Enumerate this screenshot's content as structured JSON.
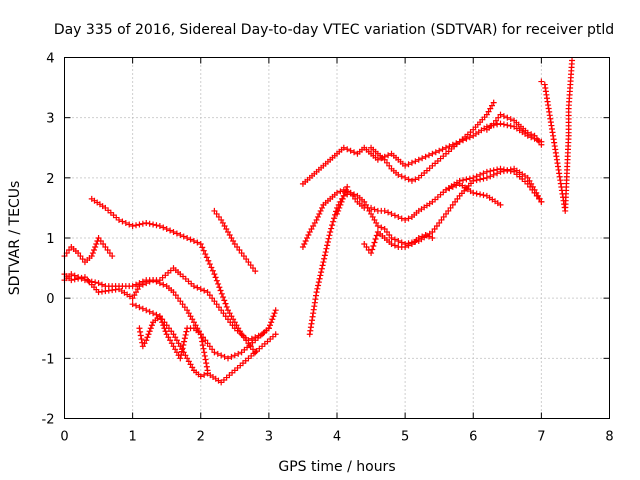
{
  "chart_data": {
    "type": "scatter",
    "title": "Day 335 of 2016, Sidereal Day-to-day VTEC variation (SDTVAR) for receiver ptld",
    "xlabel": "GPS time / hours",
    "ylabel": "SDTVAR / TECUs",
    "xlim": [
      0,
      8
    ],
    "ylim": [
      -2,
      4
    ],
    "xticks": [
      "0",
      "1",
      "2",
      "3",
      "4",
      "5",
      "6",
      "7",
      "8"
    ],
    "yticks": [
      "-2",
      "-1",
      "0",
      "1",
      "2",
      "3",
      "4"
    ],
    "grid": true,
    "marker": "plus",
    "color": "#ff0000",
    "series": [
      {
        "x": [
          0.0,
          0.1,
          0.2,
          0.3,
          0.4,
          0.5,
          0.6,
          0.7
        ],
        "y": [
          0.7,
          0.85,
          0.75,
          0.6,
          0.7,
          1.0,
          0.85,
          0.7
        ]
      },
      {
        "x": [
          0.0,
          0.1,
          0.3,
          0.5,
          0.8,
          1.0,
          1.1,
          1.3,
          1.5,
          1.6,
          1.8,
          2.0,
          2.2,
          2.4,
          2.6,
          2.8,
          3.0
        ],
        "y": [
          0.4,
          0.3,
          0.35,
          0.1,
          0.15,
          0.0,
          0.2,
          0.3,
          0.2,
          0.1,
          -0.2,
          -0.6,
          -0.9,
          -1.0,
          -0.9,
          -0.7,
          -0.5
        ]
      },
      {
        "x": [
          0.0,
          0.1,
          0.3,
          0.5,
          0.6,
          0.8,
          1.0,
          1.2,
          1.4,
          1.6,
          1.7,
          1.9,
          2.1,
          2.3,
          2.5,
          2.7,
          2.9,
          3.0,
          3.1
        ],
        "y": [
          0.3,
          0.4,
          0.3,
          0.25,
          0.2,
          0.2,
          0.2,
          0.3,
          0.3,
          0.5,
          0.4,
          0.2,
          0.1,
          -0.2,
          -0.5,
          -0.7,
          -0.6,
          -0.5,
          -0.2
        ]
      },
      {
        "x": [
          0.4,
          0.6,
          0.8,
          1.0,
          1.2,
          1.4,
          1.6,
          1.8,
          2.0,
          2.2,
          2.4,
          2.6,
          2.8
        ],
        "y": [
          1.65,
          1.5,
          1.3,
          1.2,
          1.25,
          1.2,
          1.1,
          1.0,
          0.9,
          0.4,
          -0.2,
          -0.6,
          -0.9
        ]
      },
      {
        "x": [
          1.0,
          1.2,
          1.4,
          1.6,
          1.8,
          1.9,
          2.0,
          2.1,
          2.3,
          2.5,
          2.7,
          2.9,
          3.1
        ],
        "y": [
          -0.1,
          -0.2,
          -0.3,
          -0.6,
          -1.0,
          -1.2,
          -1.3,
          -1.25,
          -1.4,
          -1.2,
          -1.0,
          -0.8,
          -0.6
        ]
      },
      {
        "x": [
          1.1,
          1.15,
          1.2,
          1.3,
          1.4,
          1.5,
          1.6,
          1.7,
          1.8,
          1.9,
          2.0,
          2.1
        ],
        "y": [
          -0.5,
          -0.8,
          -0.7,
          -0.4,
          -0.3,
          -0.6,
          -0.8,
          -1.0,
          -0.5,
          -0.5,
          -0.6,
          -1.2
        ]
      },
      {
        "x": [
          2.2,
          2.3,
          2.4,
          2.5,
          2.6,
          2.7,
          2.8
        ],
        "y": [
          1.45,
          1.3,
          1.1,
          0.9,
          0.75,
          0.6,
          0.45
        ]
      },
      {
        "x": [
          3.5,
          3.6,
          3.7,
          3.8,
          3.9,
          4.0,
          4.1,
          4.2,
          4.3,
          4.4,
          4.5,
          4.6,
          4.7,
          4.8,
          4.9,
          5.0,
          5.2,
          5.4,
          5.6,
          5.8,
          6.0,
          6.2,
          6.4,
          6.6,
          6.8,
          7.0
        ],
        "y": [
          1.9,
          2.0,
          2.1,
          2.2,
          2.3,
          2.4,
          2.5,
          2.45,
          2.4,
          2.5,
          2.4,
          2.3,
          2.35,
          2.4,
          2.3,
          2.2,
          2.3,
          2.4,
          2.5,
          2.6,
          2.7,
          2.85,
          2.9,
          2.85,
          2.7,
          2.6
        ]
      },
      {
        "x": [
          4.5,
          4.6,
          4.7,
          4.8,
          4.9,
          5.0,
          5.1,
          5.2,
          5.4,
          5.6,
          5.8,
          6.0,
          6.2,
          6.3
        ],
        "y": [
          2.5,
          2.4,
          2.3,
          2.15,
          2.05,
          2.0,
          1.95,
          2.0,
          2.2,
          2.4,
          2.6,
          2.8,
          3.05,
          3.25
        ]
      },
      {
        "x": [
          6.2,
          6.3,
          6.4,
          6.5,
          6.6,
          6.7,
          6.8,
          6.9,
          7.0
        ],
        "y": [
          2.8,
          2.9,
          3.05,
          3.0,
          2.95,
          2.85,
          2.75,
          2.7,
          2.55
        ]
      },
      {
        "x": [
          3.5,
          3.6,
          3.7,
          3.8,
          3.9,
          4.0,
          4.1,
          4.2,
          4.3,
          4.4,
          4.5,
          4.6,
          4.7,
          4.8,
          4.9,
          5.0,
          5.1,
          5.2,
          5.4,
          5.6,
          5.8,
          6.0,
          6.2,
          6.4,
          6.6,
          6.8,
          7.0
        ],
        "y": [
          0.85,
          1.1,
          1.3,
          1.55,
          1.65,
          1.75,
          1.8,
          1.75,
          1.6,
          1.5,
          1.5,
          1.45,
          1.45,
          1.4,
          1.35,
          1.3,
          1.35,
          1.45,
          1.6,
          1.8,
          1.95,
          2.0,
          2.1,
          2.15,
          2.1,
          1.9,
          1.6
        ]
      },
      {
        "x": [
          3.6,
          3.7,
          3.8,
          3.9,
          4.0,
          4.1,
          4.2,
          4.3,
          4.4,
          4.5,
          4.6,
          4.7,
          4.8,
          4.9,
          5.0,
          5.2,
          5.4,
          5.6,
          5.8,
          6.0,
          6.2,
          6.4,
          6.6,
          6.8,
          7.0
        ],
        "y": [
          -0.6,
          0.1,
          0.6,
          1.1,
          1.5,
          1.7,
          1.75,
          1.7,
          1.6,
          1.4,
          1.2,
          1.15,
          1.0,
          0.95,
          0.9,
          0.95,
          1.1,
          1.4,
          1.7,
          1.95,
          2.0,
          2.1,
          2.15,
          2.0,
          1.6
        ]
      },
      {
        "x": [
          4.4,
          4.5,
          4.6,
          4.7,
          4.8,
          4.9,
          5.0,
          5.1,
          5.2,
          5.3,
          5.4
        ],
        "y": [
          0.9,
          0.75,
          1.1,
          1.0,
          0.9,
          0.85,
          0.85,
          0.9,
          1.0,
          1.05,
          1.0
        ]
      },
      {
        "x": [
          5.6,
          5.8,
          6.0,
          6.2,
          6.4
        ],
        "y": [
          1.8,
          1.9,
          1.75,
          1.7,
          1.55
        ]
      },
      {
        "x": [
          4.0,
          4.05,
          4.1,
          4.15
        ],
        "y": [
          1.4,
          1.55,
          1.7,
          1.85
        ]
      },
      {
        "x": [
          7.0,
          7.05,
          7.35,
          7.4,
          7.4,
          7.4,
          7.45
        ],
        "y": [
          3.6,
          3.55,
          1.45,
          2.7,
          2.75,
          3.15,
          3.95
        ]
      }
    ]
  }
}
